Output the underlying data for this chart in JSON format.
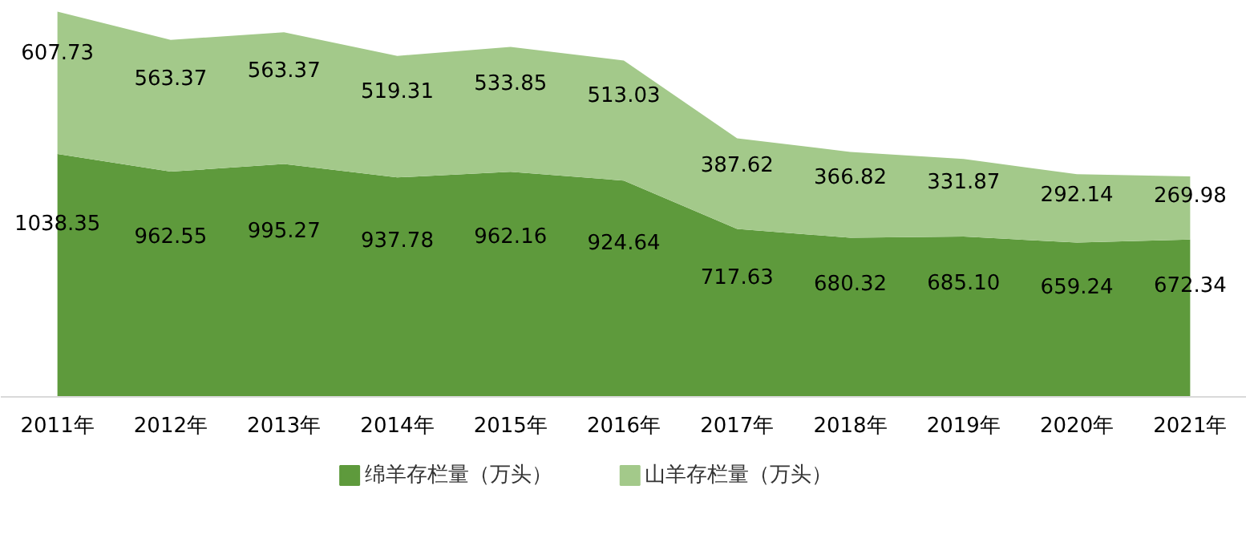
{
  "chart_data": {
    "type": "area",
    "stacked": true,
    "legend": "bottom",
    "grid": false,
    "categories": [
      "2011年",
      "2012年",
      "2013年",
      "2014年",
      "2015年",
      "2016年",
      "2017年",
      "2018年",
      "2019年",
      "2020年",
      "2021年"
    ],
    "series": [
      {
        "name": "绵羊存栏量（万头）",
        "color": "#5e9a3c",
        "values": [
          1038.35,
          962.55,
          995.27,
          937.78,
          962.16,
          924.64,
          717.63,
          680.32,
          685.1,
          659.24,
          672.34
        ],
        "value_labels": [
          "1038.35",
          "962.55",
          "995.27",
          "937.78",
          "962.16",
          "924.64",
          "717.63",
          "680.32",
          "685.10",
          "659.24",
          "672.34"
        ]
      },
      {
        "name": "山羊存栏量（万头）",
        "color": "#a3c98a",
        "values": [
          607.73,
          563.37,
          563.37,
          519.31,
          533.85,
          513.03,
          387.62,
          366.82,
          331.87,
          292.14,
          269.98
        ],
        "value_labels": [
          "607.73",
          "563.37",
          "563.37",
          "519.31",
          "533.85",
          "513.03",
          "387.62",
          "366.82",
          "331.87",
          "292.14",
          "269.98"
        ]
      }
    ]
  }
}
